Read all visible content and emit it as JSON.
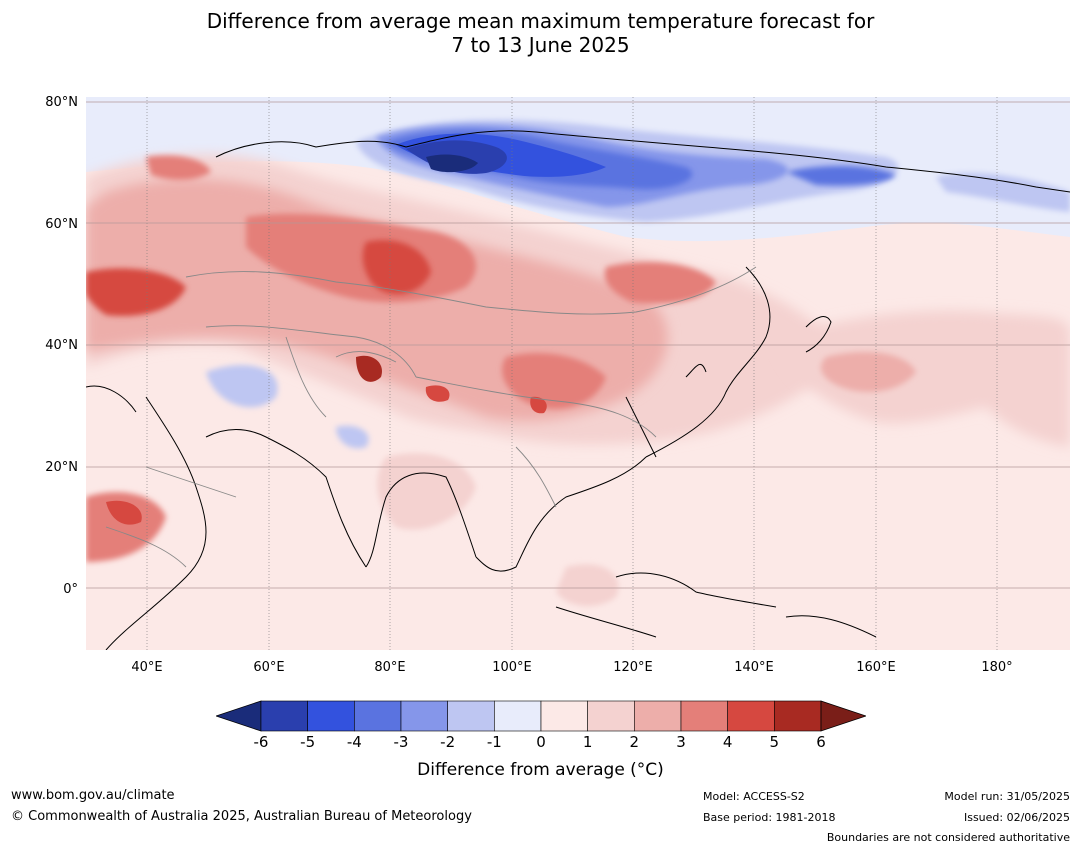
{
  "title": {
    "line1": "Difference from average mean maximum temperature forecast for",
    "line2": "7 to 13 June 2025"
  },
  "map": {
    "lat_labels": [
      "80°N",
      "60°N",
      "40°N",
      "20°N",
      "0°"
    ],
    "lon_labels": [
      "40°E",
      "60°E",
      "80°E",
      "100°E",
      "120°E",
      "140°E",
      "160°E",
      "180°"
    ]
  },
  "colorbar": {
    "ticks": [
      "-6",
      "-5",
      "-4",
      "-3",
      "-2",
      "-1",
      "0",
      "1",
      "2",
      "3",
      "4",
      "5",
      "6"
    ],
    "colors": [
      "#1a2c7a",
      "#2a3fae",
      "#3352de",
      "#5a73e0",
      "#8596ea",
      "#bec6f2",
      "#e8ecfb",
      "#fce9e7",
      "#f4d2d0",
      "#edaeaa",
      "#e47f79",
      "#d64840",
      "#a82a22",
      "#7a1e18"
    ],
    "label": "Difference from average (°C)"
  },
  "footer": {
    "website": "www.bom.gov.au/climate",
    "copyright": "© Commonwealth of Australia 2025, Australian Bureau of Meteorology",
    "model": "Model: ACCESS-S2",
    "base_period": "Base period: 1981-2018",
    "model_run": "Model run: 31/05/2025",
    "issued": "Issued: 02/06/2025",
    "disclaimer": "Boundaries are not considered authoritative"
  }
}
